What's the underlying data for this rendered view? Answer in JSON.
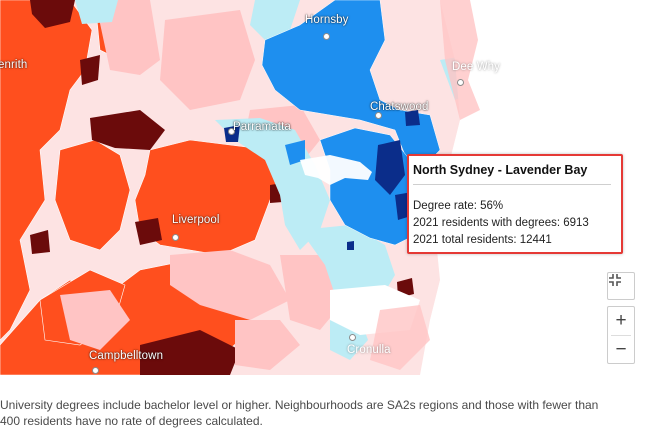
{
  "map": {
    "colors": {
      "very_low": "#6b0b0b",
      "low": "#ff4f1e",
      "below_avg": "#ffc4c4",
      "pale": "#fde3e3",
      "above_avg": "#bcecf5",
      "high": "#1e8fef",
      "very_high": "#0b2d8a",
      "water": "#ffffff"
    },
    "places": {
      "penrith": "enrith",
      "hornsby": "Hornsby",
      "dee_why": "Dee Why",
      "chatswood": "Chatswood",
      "parramatta": "Parramatta",
      "liverpool": "Liverpool",
      "campbelltown": "Campbelltown",
      "cronulla": "Cronulla"
    }
  },
  "tooltip": {
    "title": "North Sydney - Lavender Bay",
    "degree_rate": "Degree rate: 56%",
    "residents_with_degrees": "2021 residents with degrees: 6913",
    "total_residents": "2021 total residents: 12441"
  },
  "controls": {
    "fullscreen_icon": "fullscreen-icon",
    "zoom_in_label": "+",
    "zoom_out_label": "−"
  },
  "caption": {
    "line1": "University degrees include bachelor level or higher. Neighbourhoods are SA2s regions and those with fewer than",
    "line2": "400 residents have no rate of degrees calculated."
  }
}
